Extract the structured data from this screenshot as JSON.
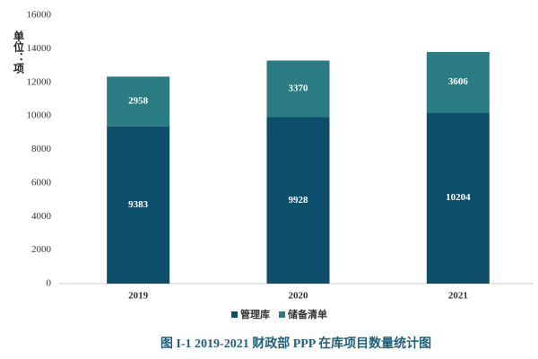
{
  "chart_data": {
    "type": "bar",
    "stacked": true,
    "title": "图 I-1   2019-2021 财政部 PPP 在库项目数量统计图",
    "y_label": "单位：项",
    "categories": [
      "2019",
      "2020",
      "2021"
    ],
    "series": [
      {
        "name": "管理库",
        "color": "#0d4e6b",
        "values": [
          9383,
          9928,
          10204
        ]
      },
      {
        "name": "储备清单",
        "color": "#2a7b82",
        "values": [
          2958,
          3370,
          3606
        ]
      }
    ],
    "ylim": [
      0,
      16000
    ],
    "yticks": [
      0,
      2000,
      4000,
      6000,
      8000,
      10000,
      12000,
      14000,
      16000
    ],
    "grid": false,
    "legend": "bottom"
  }
}
